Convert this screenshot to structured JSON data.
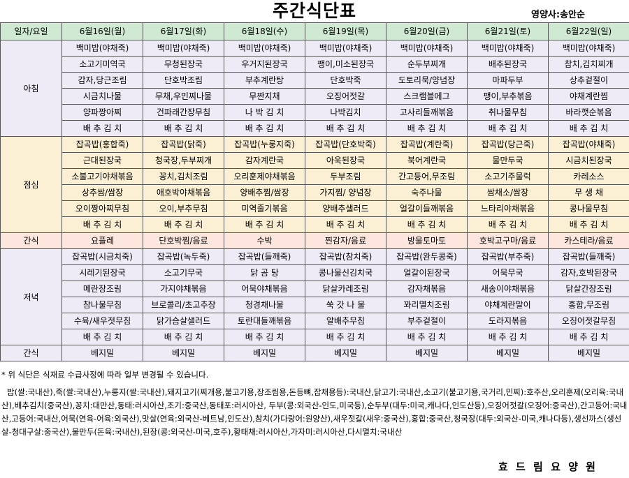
{
  "title": "주간식단표",
  "dietitian": "영양사:송안순",
  "header": {
    "corner": "일자/요일",
    "days": [
      "6월16일(월)",
      "6월17일(화)",
      "6월18일(수)",
      "6월19일(목)",
      "6월20일(금)",
      "6월21일(토)",
      "6월22일(일)"
    ]
  },
  "breakfast": {
    "label": "아침",
    "rows": [
      [
        "백미밥(야채죽)",
        "백미밥(야채죽)",
        "백미밥(야채죽)",
        "백미밥(야채죽)",
        "백미밥(야채죽)",
        "백미밥(야채죽)",
        "백미밥(야채죽)"
      ],
      [
        "소고기미역국",
        "무청된장국",
        "우거지된장국",
        "팽이,미소된장국",
        "순두부찌개",
        "배추된장국",
        "참치,김치찌개"
      ],
      [
        "감자,당근조림",
        "단호박조림",
        "부추계란탕",
        "단호박죽",
        "도토리묵/양념장",
        "마파두부",
        "상추겉절이"
      ],
      [
        "시금치나물",
        "무채,우민찌나물",
        "무짠지채",
        "오징어젓갈",
        "스크램블에그",
        "팽이,부추볶음",
        "야채계란찜"
      ],
      [
        "양파짱아찌",
        "건파래간장무침",
        "나 박 김 치",
        "나박김치",
        "고사리들깨볶음",
        "취나물무침",
        "바라깻순볶음"
      ],
      [
        "배 추 김 치",
        "배 추 김 치",
        "배 추 김 치",
        "배 추 김 치",
        "배 추 김 치",
        "배 추 김 치",
        "배 추 김 치"
      ]
    ]
  },
  "lunch": {
    "label": "점심",
    "rows": [
      [
        "잡곡밥(홍합죽)",
        "잡곡밥(닭죽)",
        "잡곡밥(누룽지죽)",
        "잡곡밥(단호박죽)",
        "잡곡밥(계란죽)",
        "잡곡밥(당근죽)",
        "잡곡밥(야채죽)"
      ],
      [
        "근대된장국",
        "청국장,두부찌개",
        "감자계란국",
        "아욱된장국",
        "북어계란국",
        "물만두국",
        "시금치된장국"
      ],
      [
        "소불고기야채볶음",
        "꽁치,김치조림",
        "오리훈제야채볶음",
        "두부조림",
        "간고등어,무조림",
        "소고기주물럭",
        "카레소스"
      ],
      [
        "상추쌈/쌈장",
        "애호박야채볶음",
        "양배추찜/쌈장",
        "가지찜/ 양념장",
        "숙주나물",
        "쌈채소/쌈장",
        "무 생 채"
      ],
      [
        "오이짱아찌무침",
        "오이,부추무침",
        "미역줄기볶음",
        "양배추샐러드",
        "얼갈이들깨볶음",
        "느타리야채볶음",
        "콩나물무침"
      ],
      [
        "배 추 김 치",
        "배 추 김 치",
        "배 추 김 치",
        "배 추 김 치",
        "배 추 김 치",
        "배 추 김 치",
        "배 추 김 치"
      ]
    ]
  },
  "snack1": {
    "label": "간식",
    "items": [
      "요플레",
      "단호박찜/음료",
      "수박",
      "찐감자/음료",
      "방울토마토",
      "호박고구마/음료",
      "카스테라/음료"
    ]
  },
  "dinner": {
    "label": "저녁",
    "rows": [
      [
        "잡곡밥(시금치죽)",
        "잡곡밥(녹두죽)",
        "잡곡밥(들깨죽)",
        "잡곡밥(참치죽)",
        "잡곡밥(완두콩죽)",
        "잡곡밥(부추죽)",
        "잡곡밥(들깨죽)"
      ],
      [
        "시레기된장국",
        "소고기무국",
        "닭 곰 탕",
        "콩나물신김치국",
        "얼갈이된장국",
        "어묵무국",
        "감자,호박된장국"
      ],
      [
        "메란장조림",
        "가지야채볶음",
        "어묵야채볶음",
        "닭살카레조림",
        "감자채볶음",
        "새송이야채볶음",
        "닭살간장조림"
      ],
      [
        "참나물무침",
        "브로콜리/초고추장",
        "청경채나물",
        "쑥 갓 나 물",
        "꽈리멸치조림",
        "야채계란말이",
        "홍합,무조림"
      ],
      [
        "수육/새우젓무침",
        "닭가슴살샐러드",
        "토란대들깨볶음",
        "알배추무침",
        "부추겉절이",
        "도라지볶음",
        "오징어젓갈무침"
      ],
      [
        "배 추 김 치",
        "배 추 김 치",
        "배 추 김 치",
        "배 추 김 치",
        "배 추 김 치",
        "배 추 김 치",
        "배 추 김 치"
      ]
    ]
  },
  "snack2": {
    "label": "간식",
    "items": [
      "베지밀",
      "베지밀",
      "베지밀",
      "베지밀",
      "베지밀",
      "베지밀",
      "베지밀"
    ]
  },
  "notice": "* 위 식단은 식재료 수급사정에 따라 일부 변경될 수 있습니다.",
  "origin": "밥(쌀:국내산),죽(쌀:국내산),누룽지(쌀:국내산),돼지고기(찌개용,불고기용,장조림용,돈등뼈,잡채용등):국내산,닭고기:국내산,소고기(불고기용,국거리,민찌):호주산,오리훈제(오리육:국내산),배추김치(중국산),꽁치:대만산,동태:러시아산,조기:중국산,동태포:러시아산, 두부(콩:외국산-인도,미국등),순두부(대두:미국,캐나다,인도산등),오징어젓갈(오징어:중국산),간고등어:국내산,고등어:국내산,어묵(연육-어육:외국산),맛살(연육:외국산-베트남,인도산),참치(가다랑어:원양산),새우젓갈(새우:중국산),홍합:중국산,청국장(대두:외국산-미국,캐나다등),생선까스(생선살-청대구살:중국산),물만두(돈육:국내산),된장(콩:외국산-미국,호주),황태채:러시아산,가자미:러시아산,다시멸치:국내산",
  "facility": "효 드 림 요 양 원"
}
